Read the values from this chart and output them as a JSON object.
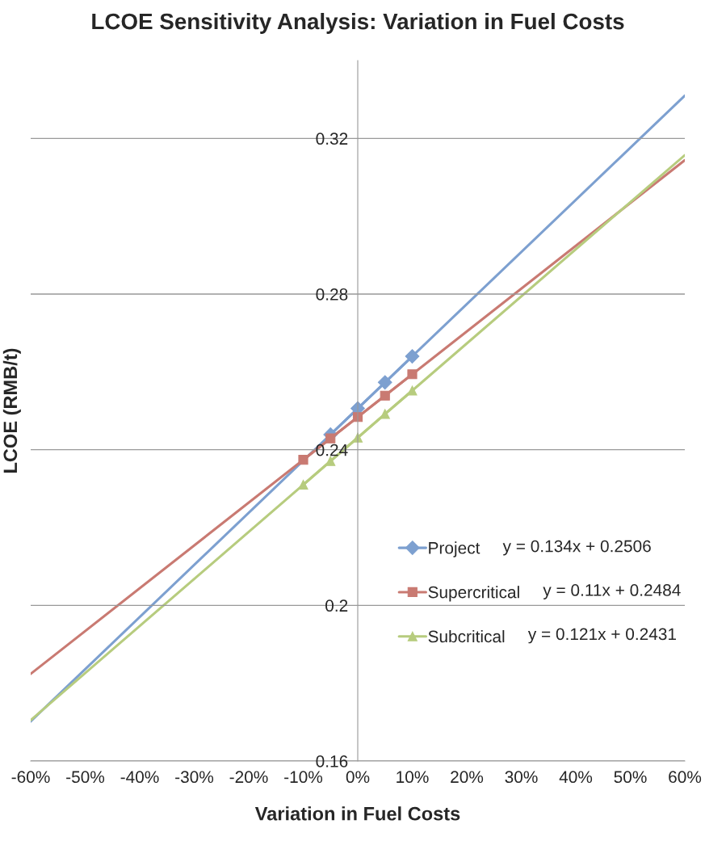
{
  "chart_data": {
    "type": "line",
    "title": "LCOE Sensitivity Analysis: Variation in Fuel Costs",
    "xlabel": "Variation in Fuel Costs",
    "ylabel": "LCOE (RMB/t)",
    "xlim": [
      -0.6,
      0.6
    ],
    "xticks": [
      {
        "value": -0.6,
        "label": "-60%"
      },
      {
        "value": -0.5,
        "label": "-50%"
      },
      {
        "value": -0.4,
        "label": "-40%"
      },
      {
        "value": -0.3,
        "label": "-30%"
      },
      {
        "value": -0.2,
        "label": "-20%"
      },
      {
        "value": -0.1,
        "label": "-10%"
      },
      {
        "value": 0,
        "label": "0%"
      },
      {
        "value": 0.1,
        "label": "10%"
      },
      {
        "value": 0.2,
        "label": "20%"
      },
      {
        "value": 0.3,
        "label": "30%"
      },
      {
        "value": 0.4,
        "label": "40%"
      },
      {
        "value": 0.5,
        "label": "50%"
      },
      {
        "value": 0.6,
        "label": "60%"
      }
    ],
    "ylim": [
      0.16,
      0.34
    ],
    "yticks": [
      0.16,
      0.2,
      0.24,
      0.28,
      0.32
    ],
    "grid": "y",
    "legend": "right",
    "annotations": [
      "y = 0.134x + 0.2506",
      "y = 0.11x + 0.2484",
      "y = 0.121x + 0.2431"
    ],
    "series": [
      {
        "color": "#7da0d0",
        "x": [
          -0.6,
          0.6
        ],
        "values": [
          0.1702,
          0.331
        ],
        "marker": "none"
      },
      {
        "color": "#c97a72",
        "x": [
          -0.6,
          0.6
        ],
        "values": [
          0.1824,
          0.3144
        ],
        "marker": "none"
      },
      {
        "color": "#b7cc7e",
        "x": [
          -0.6,
          0.6
        ],
        "values": [
          0.1705,
          0.3157
        ],
        "marker": "none"
      },
      {
        "name": "Project",
        "color": "#7da0d0",
        "x": [
          -0.05,
          0,
          0.05,
          0.1
        ],
        "values": [
          0.2439,
          0.2506,
          0.2573,
          0.264
        ],
        "marker": "diamond"
      },
      {
        "name": "Supercritical",
        "color": "#c97a72",
        "x": [
          -0.1,
          -0.05,
          0,
          0.05,
          0.1
        ],
        "values": [
          0.2374,
          0.2429,
          0.2484,
          0.2539,
          0.2594
        ],
        "marker": "square"
      },
      {
        "name": "Subcritical",
        "color": "#b7cc7e",
        "x": [
          -0.1,
          -0.05,
          0,
          0.05,
          0.1
        ],
        "values": [
          0.231,
          0.2371,
          0.2431,
          0.2492,
          0.2552
        ],
        "marker": "triangle"
      }
    ]
  }
}
